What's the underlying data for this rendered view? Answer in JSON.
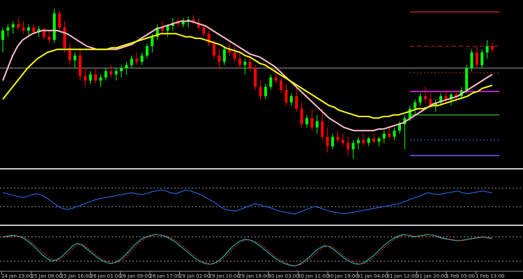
{
  "chart_data": {
    "type": "candlestick",
    "title": "",
    "xlabel": "",
    "ylabel": "",
    "x_tick_labels": [
      "24 Jan 23:00",
      "25 Jan 08:00",
      "25 Jan 16:00",
      "26 Jan 01:00",
      "26 Jan 09:00",
      "26 Jan 17:00",
      "29 Jan 02:00",
      "29 Jan 10:00",
      "29 Jan 18:00",
      "30 Jan 03:00",
      "30 Jan 11:00",
      "30 Jan 19:00",
      "31 Jan 04:00",
      "31 Jan 12:00",
      "31 Jan 20:00",
      "1 Feb 05:00",
      "1 Feb 13:00"
    ],
    "price_panel": {
      "ylim": [
        0,
        100
      ],
      "candles": [
        {
          "o": 78,
          "h": 86,
          "l": 70,
          "c": 84
        },
        {
          "o": 84,
          "h": 88,
          "l": 80,
          "c": 86
        },
        {
          "o": 86,
          "h": 90,
          "l": 82,
          "c": 88
        },
        {
          "o": 88,
          "h": 92,
          "l": 84,
          "c": 86
        },
        {
          "o": 86,
          "h": 90,
          "l": 82,
          "c": 84
        },
        {
          "o": 84,
          "h": 88,
          "l": 80,
          "c": 86
        },
        {
          "o": 86,
          "h": 88,
          "l": 82,
          "c": 83
        },
        {
          "o": 83,
          "h": 87,
          "l": 80,
          "c": 85
        },
        {
          "o": 85,
          "h": 86,
          "l": 78,
          "c": 80
        },
        {
          "o": 80,
          "h": 84,
          "l": 76,
          "c": 78
        },
        {
          "o": 78,
          "h": 98,
          "l": 76,
          "c": 95
        },
        {
          "o": 95,
          "h": 97,
          "l": 84,
          "c": 86
        },
        {
          "o": 86,
          "h": 90,
          "l": 70,
          "c": 73
        },
        {
          "o": 73,
          "h": 76,
          "l": 62,
          "c": 65
        },
        {
          "o": 65,
          "h": 70,
          "l": 60,
          "c": 68
        },
        {
          "o": 68,
          "h": 72,
          "l": 52,
          "c": 55
        },
        {
          "o": 55,
          "h": 60,
          "l": 48,
          "c": 52
        },
        {
          "o": 52,
          "h": 58,
          "l": 50,
          "c": 56
        },
        {
          "o": 56,
          "h": 60,
          "l": 50,
          "c": 52
        },
        {
          "o": 52,
          "h": 56,
          "l": 48,
          "c": 54
        },
        {
          "o": 54,
          "h": 60,
          "l": 52,
          "c": 58
        },
        {
          "o": 58,
          "h": 62,
          "l": 54,
          "c": 56
        },
        {
          "o": 56,
          "h": 60,
          "l": 52,
          "c": 58
        },
        {
          "o": 58,
          "h": 62,
          "l": 54,
          "c": 60
        },
        {
          "o": 60,
          "h": 64,
          "l": 56,
          "c": 62
        },
        {
          "o": 62,
          "h": 68,
          "l": 60,
          "c": 66
        },
        {
          "o": 66,
          "h": 70,
          "l": 62,
          "c": 64
        },
        {
          "o": 64,
          "h": 70,
          "l": 62,
          "c": 68
        },
        {
          "o": 68,
          "h": 76,
          "l": 66,
          "c": 74
        },
        {
          "o": 74,
          "h": 82,
          "l": 70,
          "c": 80
        },
        {
          "o": 80,
          "h": 88,
          "l": 78,
          "c": 86
        },
        {
          "o": 86,
          "h": 90,
          "l": 82,
          "c": 84
        },
        {
          "o": 84,
          "h": 88,
          "l": 80,
          "c": 87
        },
        {
          "o": 87,
          "h": 92,
          "l": 84,
          "c": 89
        },
        {
          "o": 89,
          "h": 92,
          "l": 86,
          "c": 88
        },
        {
          "o": 88,
          "h": 92,
          "l": 86,
          "c": 90
        },
        {
          "o": 90,
          "h": 93,
          "l": 86,
          "c": 91
        },
        {
          "o": 91,
          "h": 94,
          "l": 88,
          "c": 89
        },
        {
          "o": 89,
          "h": 92,
          "l": 84,
          "c": 86
        },
        {
          "o": 86,
          "h": 88,
          "l": 80,
          "c": 82
        },
        {
          "o": 82,
          "h": 84,
          "l": 74,
          "c": 76
        },
        {
          "o": 76,
          "h": 78,
          "l": 66,
          "c": 68
        },
        {
          "o": 68,
          "h": 72,
          "l": 60,
          "c": 64
        },
        {
          "o": 64,
          "h": 74,
          "l": 62,
          "c": 72
        },
        {
          "o": 72,
          "h": 76,
          "l": 68,
          "c": 70
        },
        {
          "o": 70,
          "h": 74,
          "l": 64,
          "c": 66
        },
        {
          "o": 66,
          "h": 70,
          "l": 60,
          "c": 62
        },
        {
          "o": 62,
          "h": 66,
          "l": 56,
          "c": 64
        },
        {
          "o": 64,
          "h": 68,
          "l": 58,
          "c": 60
        },
        {
          "o": 60,
          "h": 62,
          "l": 46,
          "c": 48
        },
        {
          "o": 48,
          "h": 52,
          "l": 40,
          "c": 42
        },
        {
          "o": 42,
          "h": 50,
          "l": 40,
          "c": 48
        },
        {
          "o": 48,
          "h": 56,
          "l": 46,
          "c": 54
        },
        {
          "o": 54,
          "h": 60,
          "l": 50,
          "c": 52
        },
        {
          "o": 52,
          "h": 54,
          "l": 44,
          "c": 46
        },
        {
          "o": 46,
          "h": 50,
          "l": 36,
          "c": 38
        },
        {
          "o": 38,
          "h": 44,
          "l": 36,
          "c": 42
        },
        {
          "o": 42,
          "h": 48,
          "l": 32,
          "c": 34
        },
        {
          "o": 34,
          "h": 38,
          "l": 22,
          "c": 24
        },
        {
          "o": 24,
          "h": 30,
          "l": 22,
          "c": 28
        },
        {
          "o": 28,
          "h": 34,
          "l": 20,
          "c": 22
        },
        {
          "o": 22,
          "h": 30,
          "l": 18,
          "c": 26
        },
        {
          "o": 26,
          "h": 34,
          "l": 14,
          "c": 16
        },
        {
          "o": 16,
          "h": 22,
          "l": 6,
          "c": 10
        },
        {
          "o": 10,
          "h": 18,
          "l": 8,
          "c": 16
        },
        {
          "o": 16,
          "h": 20,
          "l": 12,
          "c": 14
        },
        {
          "o": 14,
          "h": 18,
          "l": 10,
          "c": 12
        },
        {
          "o": 12,
          "h": 16,
          "l": 4,
          "c": 8
        },
        {
          "o": 8,
          "h": 14,
          "l": 2,
          "c": 12
        },
        {
          "o": 12,
          "h": 16,
          "l": 8,
          "c": 14
        },
        {
          "o": 14,
          "h": 18,
          "l": 10,
          "c": 12
        },
        {
          "o": 12,
          "h": 16,
          "l": 10,
          "c": 15
        },
        {
          "o": 15,
          "h": 18,
          "l": 12,
          "c": 13
        },
        {
          "o": 13,
          "h": 16,
          "l": 10,
          "c": 15
        },
        {
          "o": 15,
          "h": 20,
          "l": 12,
          "c": 18
        },
        {
          "o": 18,
          "h": 22,
          "l": 14,
          "c": 16
        },
        {
          "o": 16,
          "h": 22,
          "l": 14,
          "c": 20
        },
        {
          "o": 20,
          "h": 26,
          "l": 18,
          "c": 24
        },
        {
          "o": 24,
          "h": 30,
          "l": 8,
          "c": 28
        },
        {
          "o": 28,
          "h": 36,
          "l": 26,
          "c": 34
        },
        {
          "o": 34,
          "h": 40,
          "l": 30,
          "c": 38
        },
        {
          "o": 38,
          "h": 44,
          "l": 36,
          "c": 42
        },
        {
          "o": 42,
          "h": 48,
          "l": 38,
          "c": 40
        },
        {
          "o": 40,
          "h": 44,
          "l": 34,
          "c": 36
        },
        {
          "o": 36,
          "h": 40,
          "l": 32,
          "c": 38
        },
        {
          "o": 38,
          "h": 44,
          "l": 36,
          "c": 42
        },
        {
          "o": 42,
          "h": 46,
          "l": 38,
          "c": 40
        },
        {
          "o": 40,
          "h": 44,
          "l": 36,
          "c": 43
        },
        {
          "o": 43,
          "h": 46,
          "l": 40,
          "c": 42
        },
        {
          "o": 42,
          "h": 48,
          "l": 40,
          "c": 46
        },
        {
          "o": 46,
          "h": 62,
          "l": 44,
          "c": 60
        },
        {
          "o": 60,
          "h": 72,
          "l": 58,
          "c": 70
        },
        {
          "o": 70,
          "h": 74,
          "l": 60,
          "c": 62
        },
        {
          "o": 62,
          "h": 72,
          "l": 60,
          "c": 70
        },
        {
          "o": 70,
          "h": 78,
          "l": 66,
          "c": 74
        },
        {
          "o": 74,
          "h": 76,
          "l": 70,
          "c": 72
        }
      ],
      "moving_averages": [
        {
          "color": "#ffc0cb",
          "values": [
            52,
            60,
            68,
            74,
            78,
            80,
            82,
            83,
            84,
            84,
            84,
            84,
            83,
            82,
            80,
            78,
            76,
            74,
            73,
            72,
            72,
            72,
            72,
            72,
            73,
            74,
            75,
            77,
            79,
            81,
            83,
            85,
            86,
            87,
            88,
            89,
            90,
            90,
            90,
            89,
            88,
            87,
            85,
            83,
            81,
            79,
            77,
            75,
            73,
            71,
            69,
            68,
            67,
            65,
            63,
            61,
            58,
            55,
            52,
            49,
            46,
            43,
            40,
            37,
            34,
            31,
            28,
            26,
            24,
            22,
            21,
            20,
            20,
            20,
            20,
            20,
            21,
            21,
            22,
            23,
            24,
            25,
            27,
            29,
            31,
            33,
            35,
            37,
            38,
            39,
            40,
            41,
            42,
            44,
            46,
            48,
            50,
            52,
            54,
            56
          ]
        },
        {
          "color": "#ffff00",
          "values": [
            40,
            44,
            48,
            52,
            56,
            60,
            63,
            66,
            68,
            70,
            71,
            72,
            72,
            72,
            72,
            72,
            72,
            72,
            72,
            72,
            72,
            72,
            73,
            73,
            74,
            75,
            76,
            77,
            78,
            79,
            80,
            81,
            82,
            82,
            82,
            82,
            81,
            80,
            80,
            79,
            79,
            78,
            77,
            76,
            75,
            73,
            72,
            71,
            70,
            68,
            67,
            65,
            63,
            62,
            60,
            58,
            56,
            54,
            52,
            50,
            48,
            46,
            44,
            42,
            40,
            38,
            36,
            35,
            33,
            32,
            31,
            30,
            29,
            29,
            29,
            28,
            28,
            29,
            29,
            30,
            30,
            31,
            32,
            33,
            34,
            34,
            35,
            36,
            36,
            37,
            38,
            39,
            40,
            41,
            42,
            44,
            45,
            47,
            48,
            49
          ]
        }
      ],
      "horizontal_levels": [
        {
          "value": 96,
          "color": "#c02020",
          "style": "solid"
        },
        {
          "value": 74,
          "color": "#c02020",
          "style": "dashed"
        },
        {
          "value": 60,
          "color": "#9a9aaa",
          "style": "solid"
        },
        {
          "value": 57,
          "color": "#c02020",
          "style": "dotted"
        },
        {
          "value": 45,
          "color": "#ff20ff",
          "style": "solid"
        },
        {
          "value": 30,
          "color": "#20a020",
          "style": "solid"
        },
        {
          "value": 14,
          "color": "#4060ff",
          "style": "dotted"
        },
        {
          "value": 4,
          "color": "#8060ff",
          "style": "solid"
        }
      ]
    },
    "oscillator1": {
      "ylim": [
        0,
        100
      ],
      "levels": [
        70,
        30
      ],
      "series": [
        {
          "color": "#3070ff",
          "values": [
            60,
            58,
            55,
            52,
            50,
            52,
            56,
            58,
            54,
            48,
            40,
            32,
            26,
            24,
            26,
            30,
            34,
            38,
            42,
            46,
            48,
            50,
            52,
            54,
            56,
            58,
            60,
            58,
            56,
            58,
            62,
            64,
            66,
            64,
            60,
            58,
            62,
            66,
            64,
            60,
            56,
            50,
            44,
            38,
            30,
            24,
            22,
            20,
            24,
            28,
            32,
            36,
            34,
            30,
            28,
            24,
            20,
            18,
            16,
            14,
            18,
            22,
            26,
            30,
            28,
            24,
            20,
            18,
            16,
            14,
            16,
            18,
            20,
            22,
            24,
            26,
            28,
            30,
            32,
            34,
            36,
            40,
            44,
            48,
            52,
            56,
            60,
            58,
            56,
            58,
            60,
            62,
            64,
            60,
            58,
            60,
            62,
            64,
            62,
            60
          ]
        }
      ]
    },
    "oscillator2": {
      "ylim": [
        0,
        100
      ],
      "levels": [
        80,
        20
      ],
      "series": [
        {
          "color": "#20d0d0",
          "values": [
            80,
            82,
            84,
            82,
            78,
            70,
            60,
            48,
            36,
            26,
            20,
            24,
            32,
            44,
            56,
            64,
            60,
            50,
            40,
            30,
            22,
            16,
            14,
            18,
            26,
            38,
            52,
            64,
            74,
            80,
            84,
            86,
            84,
            80,
            74,
            66,
            56,
            46,
            36,
            26,
            18,
            14,
            12,
            16,
            24,
            36,
            50,
            62,
            70,
            74,
            72,
            66,
            58,
            48,
            38,
            28,
            20,
            14,
            10,
            8,
            12,
            20,
            30,
            42,
            52,
            58,
            56,
            48,
            38,
            28,
            20,
            14,
            12,
            16,
            24,
            34,
            46,
            58,
            68,
            76,
            82,
            86,
            84,
            80,
            82,
            84,
            86,
            84,
            80,
            76,
            74,
            72,
            70,
            72,
            74,
            76,
            78,
            80,
            78,
            76
          ]
        },
        {
          "color": "#ff3030",
          "values": [
            78,
            80,
            82,
            82,
            80,
            74,
            64,
            54,
            42,
            32,
            24,
            22,
            28,
            38,
            50,
            60,
            62,
            54,
            44,
            34,
            26,
            20,
            16,
            16,
            22,
            32,
            46,
            58,
            70,
            78,
            82,
            85,
            85,
            82,
            77,
            70,
            61,
            51,
            41,
            31,
            22,
            16,
            13,
            14,
            20,
            30,
            43,
            56,
            66,
            72,
            73,
            69,
            62,
            53,
            43,
            33,
            24,
            17,
            12,
            9,
            10,
            16,
            25,
            36,
            47,
            55,
            57,
            52,
            43,
            33,
            24,
            17,
            13,
            14,
            20,
            29,
            40,
            52,
            63,
            72,
            79,
            84,
            85,
            82,
            81,
            83,
            85,
            85,
            82,
            78,
            75,
            73,
            71,
            71,
            73,
            75,
            77,
            79,
            79,
            77
          ]
        }
      ]
    }
  }
}
